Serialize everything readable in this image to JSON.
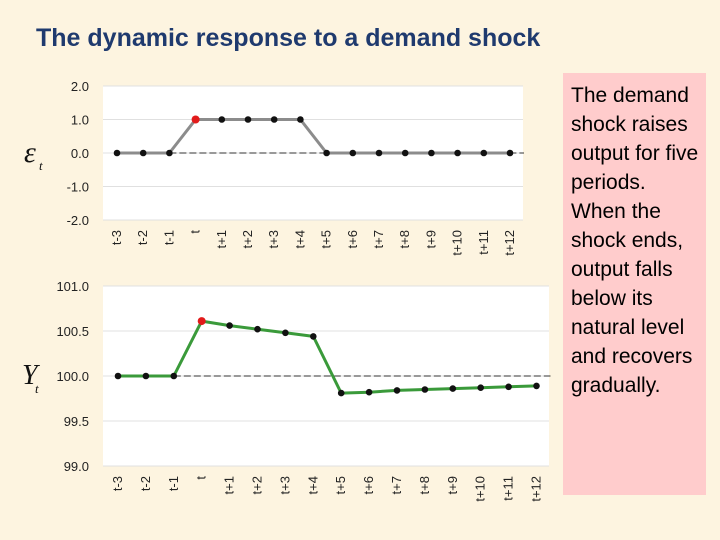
{
  "slide": {
    "title": "The dynamic response to a demand shock",
    "note": "The demand shock raises output for five periods. When the shock ends, output falls below its natural level and recovers gradually."
  },
  "chart_data": [
    {
      "type": "line",
      "ylabel_symbol": "ε",
      "ylabel_sub": "t",
      "categories": [
        "t-3",
        "t-2",
        "t-1",
        "t",
        "t+1",
        "t+2",
        "t+3",
        "t+4",
        "t+5",
        "t+6",
        "t+7",
        "t+8",
        "t+9",
        "t+10",
        "t+11",
        "t+12"
      ],
      "values": [
        0,
        0,
        0,
        1,
        1,
        1,
        1,
        1,
        0,
        0,
        0,
        0,
        0,
        0,
        0,
        0
      ],
      "ylim": [
        -2,
        2
      ],
      "yticks": [
        "2.0",
        "1.0",
        "0.0",
        "-1.0",
        "-2.0"
      ],
      "ytick_values": [
        2,
        1,
        0,
        -1,
        -2
      ],
      "baseline": 0,
      "line_color": "#8c8c8c",
      "marker_color": "#111111",
      "highlight_index": 3,
      "highlight_color": "#e21b1b"
    },
    {
      "type": "line",
      "ylabel_symbol": "Y",
      "ylabel_sub": "t",
      "categories": [
        "t-3",
        "t-2",
        "t-1",
        "t",
        "t+1",
        "t+2",
        "t+3",
        "t+4",
        "t+5",
        "t+6",
        "t+7",
        "t+8",
        "t+9",
        "t+10",
        "t+11",
        "t+12"
      ],
      "values": [
        100.0,
        100.0,
        100.0,
        100.61,
        100.56,
        100.52,
        100.48,
        100.44,
        99.81,
        99.82,
        99.84,
        99.85,
        99.86,
        99.87,
        99.88,
        99.89
      ],
      "ylim": [
        99.0,
        101.0
      ],
      "yticks": [
        "101.0",
        "100.5",
        "100.0",
        "99.5",
        "99.0"
      ],
      "ytick_values": [
        101,
        100.5,
        100,
        99.5,
        99
      ],
      "baseline": 100,
      "line_color": "#3a9a3a",
      "marker_color": "#111111",
      "highlight_index": 3,
      "highlight_color": "#e21b1b"
    }
  ]
}
